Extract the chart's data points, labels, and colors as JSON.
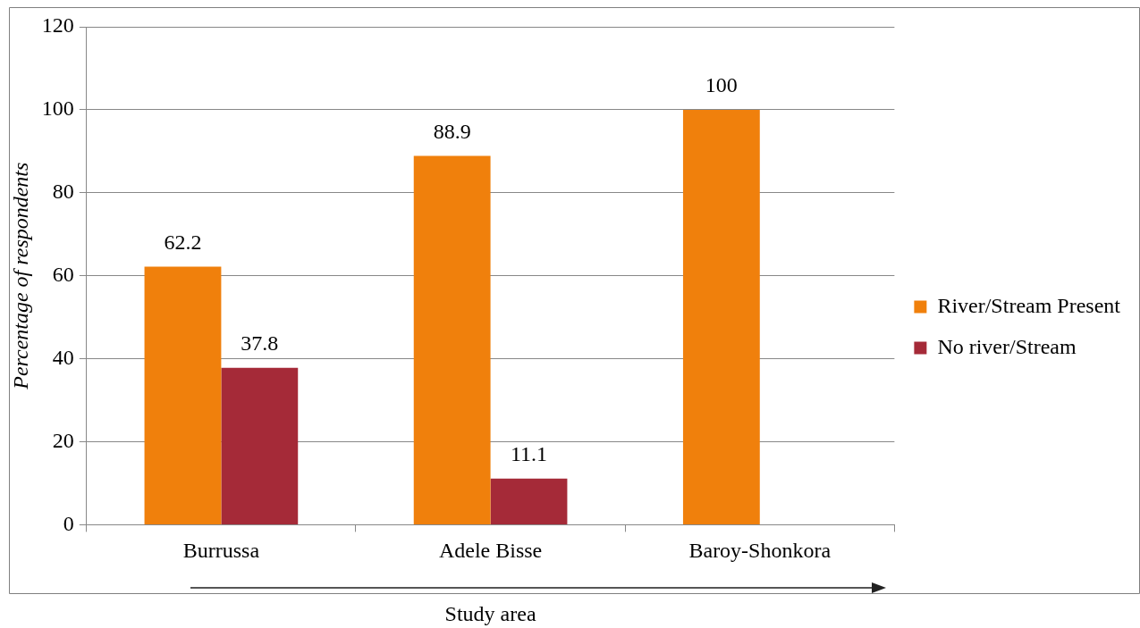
{
  "chart_data": {
    "type": "bar",
    "xlabel": "Study area",
    "ylabel": "Percentage of respondents",
    "categories": [
      "Burrussa",
      "Adele Bisse",
      "Baroy-Shonkora"
    ],
    "series": [
      {
        "name": "River/Stream Present",
        "color": "#f0800c",
        "values": [
          62.2,
          88.9,
          100
        ]
      },
      {
        "name": "No river/Stream",
        "color": "#a52a38",
        "values": [
          37.8,
          11.1,
          null
        ]
      }
    ],
    "ylim": [
      0,
      120
    ],
    "yticks": [
      0,
      20,
      40,
      60,
      80,
      100,
      120
    ],
    "grid": "y",
    "legend": "right",
    "data_labels": true
  }
}
